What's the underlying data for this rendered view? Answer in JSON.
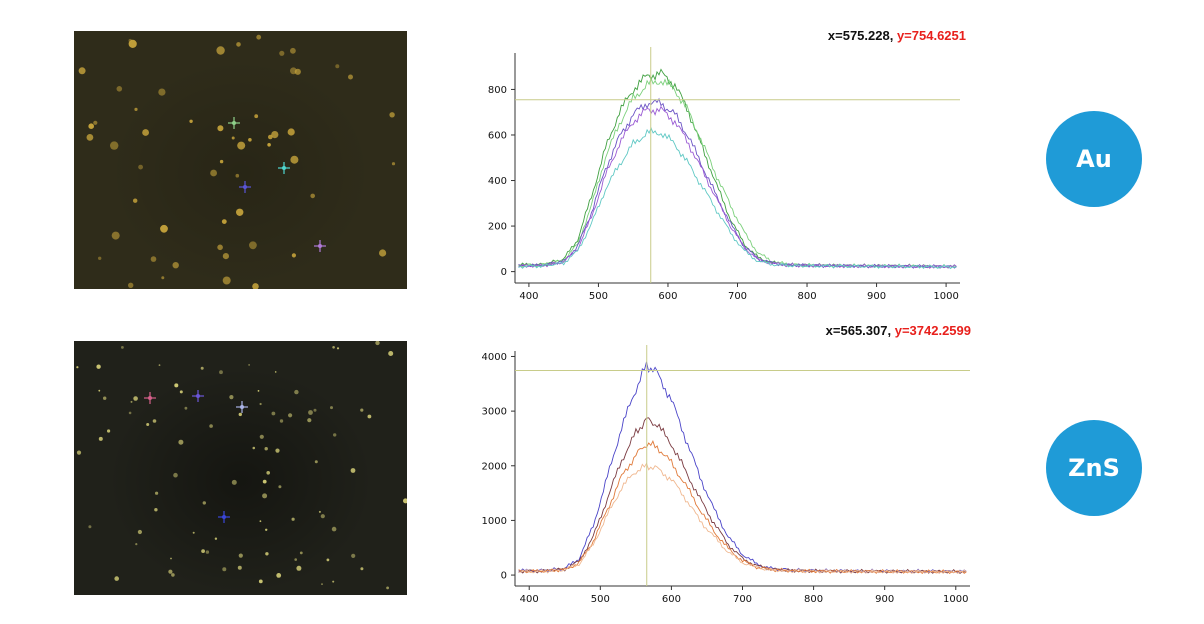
{
  "panels": [
    {
      "id": "au",
      "label": "Au",
      "readout": {
        "x_label": "x=575.228,",
        "y_label": "y=754.6251"
      },
      "cursor": {
        "x": 575.228,
        "y": 754.6251
      },
      "micrograph": {
        "background": "#2f2c1a",
        "particle_color": "#c9a63c",
        "markers": [
          {
            "color": "#4fd6cf"
          },
          {
            "color": "#b07ad8"
          },
          {
            "color": "#5a55d6"
          },
          {
            "color": "#8fd08a"
          }
        ]
      }
    },
    {
      "id": "zns",
      "label": "ZnS",
      "readout": {
        "x_label": "x=565.307,",
        "y_label": "y=3742.2599"
      },
      "cursor": {
        "x": 565.307,
        "y": 3742.2599
      },
      "micrograph": {
        "background": "#20211a",
        "particle_color": "#d8d27a",
        "markers": [
          {
            "color": "#d45f8a"
          },
          {
            "color": "#6b56d8"
          },
          {
            "color": "#aab3e6"
          },
          {
            "color": "#3a46d8"
          }
        ]
      }
    }
  ],
  "colors": {
    "crosshair": "#c8cc8a",
    "badge": "#1f9bd7",
    "readout_y": "#e8201c"
  },
  "chart_data": [
    {
      "type": "line",
      "title": "",
      "xlabel": "",
      "ylabel": "",
      "xlim": [
        380,
        1020
      ],
      "ylim": [
        -50,
        960
      ],
      "x_ticks": [
        400,
        500,
        600,
        700,
        800,
        900,
        1000
      ],
      "y_ticks": [
        0,
        200,
        400,
        600,
        800
      ],
      "grid": false,
      "series": [
        {
          "color": "#3fa040",
          "x": [
            385,
            420,
            450,
            470,
            490,
            510,
            530,
            550,
            570,
            590,
            610,
            630,
            650,
            670,
            690,
            710,
            730,
            750,
            770,
            800,
            850,
            900,
            950,
            1000,
            1015
          ],
          "y": [
            30,
            30,
            55,
            140,
            330,
            540,
            700,
            800,
            860,
            870,
            820,
            700,
            540,
            380,
            230,
            120,
            60,
            40,
            30,
            28,
            26,
            25,
            24,
            22,
            22
          ]
        },
        {
          "color": "#7bd07b",
          "x": [
            385,
            420,
            450,
            470,
            490,
            510,
            530,
            550,
            570,
            590,
            610,
            630,
            650,
            670,
            690,
            710,
            730,
            750,
            770,
            800,
            850,
            900,
            950,
            1000,
            1015
          ],
          "y": [
            28,
            30,
            50,
            120,
            290,
            500,
            650,
            760,
            820,
            840,
            800,
            700,
            560,
            420,
            290,
            170,
            80,
            45,
            32,
            28,
            26,
            25,
            24,
            22,
            22
          ]
        },
        {
          "color": "#6a52c4",
          "x": [
            385,
            420,
            450,
            470,
            490,
            510,
            530,
            550,
            570,
            590,
            610,
            630,
            650,
            670,
            690,
            710,
            730,
            750,
            770,
            800,
            850,
            900,
            950,
            1000,
            1015
          ],
          "y": [
            25,
            28,
            45,
            110,
            260,
            450,
            590,
            690,
            740,
            740,
            690,
            590,
            460,
            330,
            210,
            110,
            55,
            38,
            30,
            27,
            25,
            24,
            23,
            22,
            22
          ]
        },
        {
          "color": "#9a5ad4",
          "x": [
            385,
            420,
            450,
            470,
            490,
            510,
            530,
            550,
            570,
            590,
            610,
            630,
            650,
            670,
            690,
            710,
            730,
            750,
            770,
            800,
            850,
            900,
            950,
            1000,
            1015
          ],
          "y": [
            25,
            27,
            42,
            100,
            240,
            420,
            560,
            660,
            710,
            710,
            660,
            560,
            440,
            320,
            200,
            105,
            52,
            36,
            29,
            27,
            25,
            24,
            23,
            22,
            22
          ]
        },
        {
          "color": "#5fc8c4",
          "x": [
            385,
            420,
            450,
            470,
            490,
            510,
            530,
            550,
            570,
            590,
            610,
            630,
            650,
            670,
            690,
            710,
            730,
            750,
            770,
            800,
            850,
            900,
            950,
            1000,
            1015
          ],
          "y": [
            22,
            25,
            38,
            90,
            210,
            360,
            470,
            560,
            610,
            610,
            560,
            470,
            370,
            270,
            170,
            90,
            45,
            32,
            27,
            25,
            24,
            23,
            22,
            21,
            21
          ]
        }
      ]
    },
    {
      "type": "line",
      "title": "",
      "xlabel": "",
      "ylabel": "",
      "xlim": [
        380,
        1020
      ],
      "ylim": [
        -200,
        4100
      ],
      "x_ticks": [
        400,
        500,
        600,
        700,
        800,
        900,
        1000
      ],
      "y_ticks": [
        0,
        1000,
        2000,
        3000,
        4000
      ],
      "grid": false,
      "series": [
        {
          "color": "#4a44c8",
          "x": [
            385,
            420,
            450,
            470,
            490,
            510,
            530,
            550,
            565,
            580,
            600,
            620,
            640,
            660,
            680,
            700,
            720,
            740,
            770,
            800,
            850,
            900,
            950,
            1000,
            1015
          ],
          "y": [
            80,
            80,
            120,
            300,
            900,
            1800,
            2700,
            3400,
            3850,
            3700,
            3200,
            2500,
            1800,
            1200,
            700,
            380,
            200,
            120,
            90,
            80,
            75,
            70,
            70,
            65,
            65
          ]
        },
        {
          "color": "#7a3a40",
          "x": [
            385,
            420,
            450,
            470,
            490,
            510,
            530,
            550,
            565,
            580,
            600,
            620,
            640,
            660,
            680,
            700,
            720,
            740,
            770,
            800,
            850,
            900,
            950,
            1000,
            1015
          ],
          "y": [
            70,
            75,
            110,
            250,
            700,
            1400,
            2100,
            2600,
            2850,
            2750,
            2400,
            1900,
            1400,
            950,
            560,
            300,
            170,
            110,
            80,
            75,
            70,
            68,
            65,
            62,
            62
          ]
        },
        {
          "color": "#e07a3a",
          "x": [
            385,
            420,
            450,
            470,
            490,
            510,
            530,
            550,
            565,
            580,
            600,
            620,
            640,
            660,
            680,
            700,
            720,
            740,
            770,
            800,
            850,
            900,
            950,
            1000,
            1015
          ],
          "y": [
            70,
            72,
            100,
            220,
            620,
            1200,
            1800,
            2200,
            2400,
            2350,
            2050,
            1650,
            1200,
            800,
            480,
            260,
            150,
            100,
            78,
            72,
            68,
            65,
            62,
            60,
            60
          ]
        },
        {
          "color": "#f0b890",
          "x": [
            385,
            420,
            450,
            470,
            490,
            510,
            530,
            550,
            565,
            580,
            600,
            620,
            640,
            660,
            680,
            700,
            720,
            740,
            770,
            800,
            850,
            900,
            950,
            1000,
            1015
          ],
          "y": [
            65,
            70,
            95,
            200,
            560,
            1100,
            1600,
            1900,
            2000,
            1950,
            1750,
            1400,
            1000,
            700,
            420,
            230,
            140,
            95,
            75,
            70,
            66,
            63,
            60,
            58,
            58
          ]
        }
      ]
    }
  ]
}
